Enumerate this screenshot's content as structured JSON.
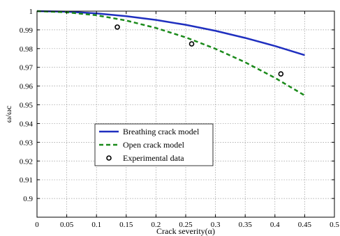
{
  "chart_data": {
    "type": "line",
    "title": "",
    "xlabel": "Crack severity(α)",
    "ylabel": "ω/ωc",
    "xlim": [
      0,
      0.5
    ],
    "ylim": [
      0.89,
      1.0
    ],
    "x_ticks": [
      "0",
      "0.05",
      "0.1",
      "0.15",
      "0.2",
      "0.25",
      "0.3",
      "0.35",
      "0.4",
      "0.45",
      "0.5"
    ],
    "y_ticks": [
      "0.9",
      "0.91",
      "0.92",
      "0.93",
      "0.94",
      "0.95",
      "0.96",
      "0.97",
      "0.98",
      "0.99",
      "1"
    ],
    "grid": true,
    "legend_position": "lower-left",
    "series": [
      {
        "name": "Breathing crack model",
        "type": "line",
        "style": "solid",
        "color": "#1f2fbf",
        "x": [
          0,
          0.05,
          0.1,
          0.15,
          0.2,
          0.25,
          0.3,
          0.35,
          0.4,
          0.45
        ],
        "y": [
          1.0,
          0.9997,
          0.9988,
          0.9973,
          0.9953,
          0.9927,
          0.9895,
          0.9857,
          0.9814,
          0.9765
        ]
      },
      {
        "name": "Open crack model",
        "type": "line",
        "style": "dashed",
        "color": "#1a8a1a",
        "x": [
          0,
          0.05,
          0.1,
          0.15,
          0.2,
          0.25,
          0.3,
          0.35,
          0.4,
          0.45
        ],
        "y": [
          1.0,
          0.9994,
          0.9978,
          0.995,
          0.991,
          0.986,
          0.9799,
          0.9727,
          0.9644,
          0.955
        ]
      },
      {
        "name": "Experimental data",
        "type": "scatter",
        "marker": "open-circle",
        "color": "#000000",
        "x": [
          0.135,
          0.26,
          0.41
        ],
        "y": [
          0.9915,
          0.9825,
          0.9665
        ]
      }
    ]
  }
}
